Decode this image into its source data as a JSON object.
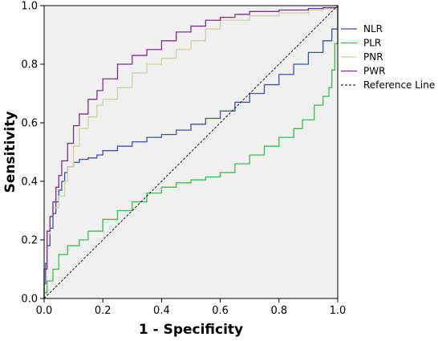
{
  "colors": {
    "background": "#ffffff",
    "plot_background": "#f0f0f0",
    "axis": "#000000",
    "NLR": "#3f51a3",
    "PLR": "#3dbb4c",
    "PNR": "#cfcf9c",
    "PWR": "#7e2f8b",
    "Reference Line": "#000000"
  },
  "chart_data": {
    "type": "line",
    "title": "",
    "xlabel": "1 - Specificity",
    "ylabel": "Sensitivity",
    "xlim": [
      0,
      1
    ],
    "ylim": [
      0,
      1
    ],
    "xticks": [
      0.0,
      0.2,
      0.4,
      0.6,
      0.8,
      1.0
    ],
    "yticks": [
      0.0,
      0.2,
      0.4,
      0.6,
      0.8,
      1.0
    ],
    "xtick_labels": [
      "0.0",
      "0.2",
      "0.4",
      "0.6",
      "0.8",
      "1.0"
    ],
    "ytick_labels": [
      "0.0",
      "0.2",
      "0.4",
      "0.6",
      "0.8",
      "1.0"
    ],
    "grid": false,
    "legend_position": "right",
    "series": [
      {
        "name": "NLR",
        "step": true,
        "points": [
          [
            0,
            0
          ],
          [
            0,
            0.05
          ],
          [
            0.005,
            0.12
          ],
          [
            0.01,
            0.18
          ],
          [
            0.02,
            0.24
          ],
          [
            0.03,
            0.29
          ],
          [
            0.04,
            0.33
          ],
          [
            0.05,
            0.37
          ],
          [
            0.06,
            0.4
          ],
          [
            0.07,
            0.43
          ],
          [
            0.08,
            0.45
          ],
          [
            0.1,
            0.465
          ],
          [
            0.12,
            0.475
          ],
          [
            0.15,
            0.48
          ],
          [
            0.18,
            0.49
          ],
          [
            0.2,
            0.505
          ],
          [
            0.25,
            0.52
          ],
          [
            0.3,
            0.535
          ],
          [
            0.35,
            0.55
          ],
          [
            0.4,
            0.56
          ],
          [
            0.45,
            0.575
          ],
          [
            0.5,
            0.595
          ],
          [
            0.55,
            0.615
          ],
          [
            0.6,
            0.64
          ],
          [
            0.65,
            0.67
          ],
          [
            0.7,
            0.7
          ],
          [
            0.75,
            0.73
          ],
          [
            0.8,
            0.765
          ],
          [
            0.85,
            0.8
          ],
          [
            0.9,
            0.84
          ],
          [
            0.95,
            0.88
          ],
          [
            0.98,
            0.92
          ],
          [
            1.0,
            1.0
          ]
        ]
      },
      {
        "name": "PLR",
        "step": true,
        "points": [
          [
            0,
            0
          ],
          [
            0,
            0.02
          ],
          [
            0.01,
            0.06
          ],
          [
            0.03,
            0.1
          ],
          [
            0.05,
            0.15
          ],
          [
            0.08,
            0.18
          ],
          [
            0.12,
            0.2
          ],
          [
            0.15,
            0.23
          ],
          [
            0.2,
            0.27
          ],
          [
            0.25,
            0.3
          ],
          [
            0.3,
            0.33
          ],
          [
            0.35,
            0.36
          ],
          [
            0.4,
            0.38
          ],
          [
            0.45,
            0.395
          ],
          [
            0.5,
            0.405
          ],
          [
            0.55,
            0.415
          ],
          [
            0.6,
            0.43
          ],
          [
            0.65,
            0.46
          ],
          [
            0.7,
            0.49
          ],
          [
            0.75,
            0.52
          ],
          [
            0.8,
            0.55
          ],
          [
            0.85,
            0.58
          ],
          [
            0.88,
            0.61
          ],
          [
            0.92,
            0.66
          ],
          [
            0.95,
            0.69
          ],
          [
            0.97,
            0.72
          ],
          [
            0.98,
            0.78
          ],
          [
            0.99,
            0.87
          ],
          [
            1.0,
            1.0
          ]
        ]
      },
      {
        "name": "PNR",
        "step": true,
        "points": [
          [
            0,
            0
          ],
          [
            0,
            0.1
          ],
          [
            0.01,
            0.22
          ],
          [
            0.02,
            0.28
          ],
          [
            0.03,
            0.31
          ],
          [
            0.05,
            0.35
          ],
          [
            0.07,
            0.4
          ],
          [
            0.08,
            0.45
          ],
          [
            0.1,
            0.52
          ],
          [
            0.12,
            0.58
          ],
          [
            0.15,
            0.62
          ],
          [
            0.18,
            0.66
          ],
          [
            0.2,
            0.68
          ],
          [
            0.25,
            0.72
          ],
          [
            0.3,
            0.77
          ],
          [
            0.35,
            0.8
          ],
          [
            0.4,
            0.82
          ],
          [
            0.45,
            0.85
          ],
          [
            0.5,
            0.88
          ],
          [
            0.55,
            0.92
          ],
          [
            0.6,
            0.95
          ],
          [
            0.7,
            0.965
          ],
          [
            0.8,
            0.975
          ],
          [
            0.9,
            0.985
          ],
          [
            0.95,
            0.99
          ],
          [
            1.0,
            1.0
          ]
        ]
      },
      {
        "name": "PWR",
        "step": true,
        "points": [
          [
            0,
            0
          ],
          [
            0,
            0.1
          ],
          [
            0.01,
            0.23
          ],
          [
            0.02,
            0.28
          ],
          [
            0.03,
            0.33
          ],
          [
            0.04,
            0.38
          ],
          [
            0.05,
            0.42
          ],
          [
            0.06,
            0.47
          ],
          [
            0.08,
            0.53
          ],
          [
            0.1,
            0.59
          ],
          [
            0.12,
            0.63
          ],
          [
            0.15,
            0.68
          ],
          [
            0.18,
            0.71
          ],
          [
            0.2,
            0.75
          ],
          [
            0.25,
            0.8
          ],
          [
            0.3,
            0.83
          ],
          [
            0.35,
            0.85
          ],
          [
            0.4,
            0.88
          ],
          [
            0.45,
            0.91
          ],
          [
            0.5,
            0.93
          ],
          [
            0.55,
            0.95
          ],
          [
            0.6,
            0.96
          ],
          [
            0.65,
            0.97
          ],
          [
            0.7,
            0.98
          ],
          [
            0.8,
            0.985
          ],
          [
            0.9,
            0.99
          ],
          [
            0.95,
            0.993
          ],
          [
            1.0,
            1.0
          ]
        ]
      },
      {
        "name": "Reference Line",
        "dashed": true,
        "points": [
          [
            0,
            0
          ],
          [
            1,
            1
          ]
        ]
      }
    ]
  }
}
